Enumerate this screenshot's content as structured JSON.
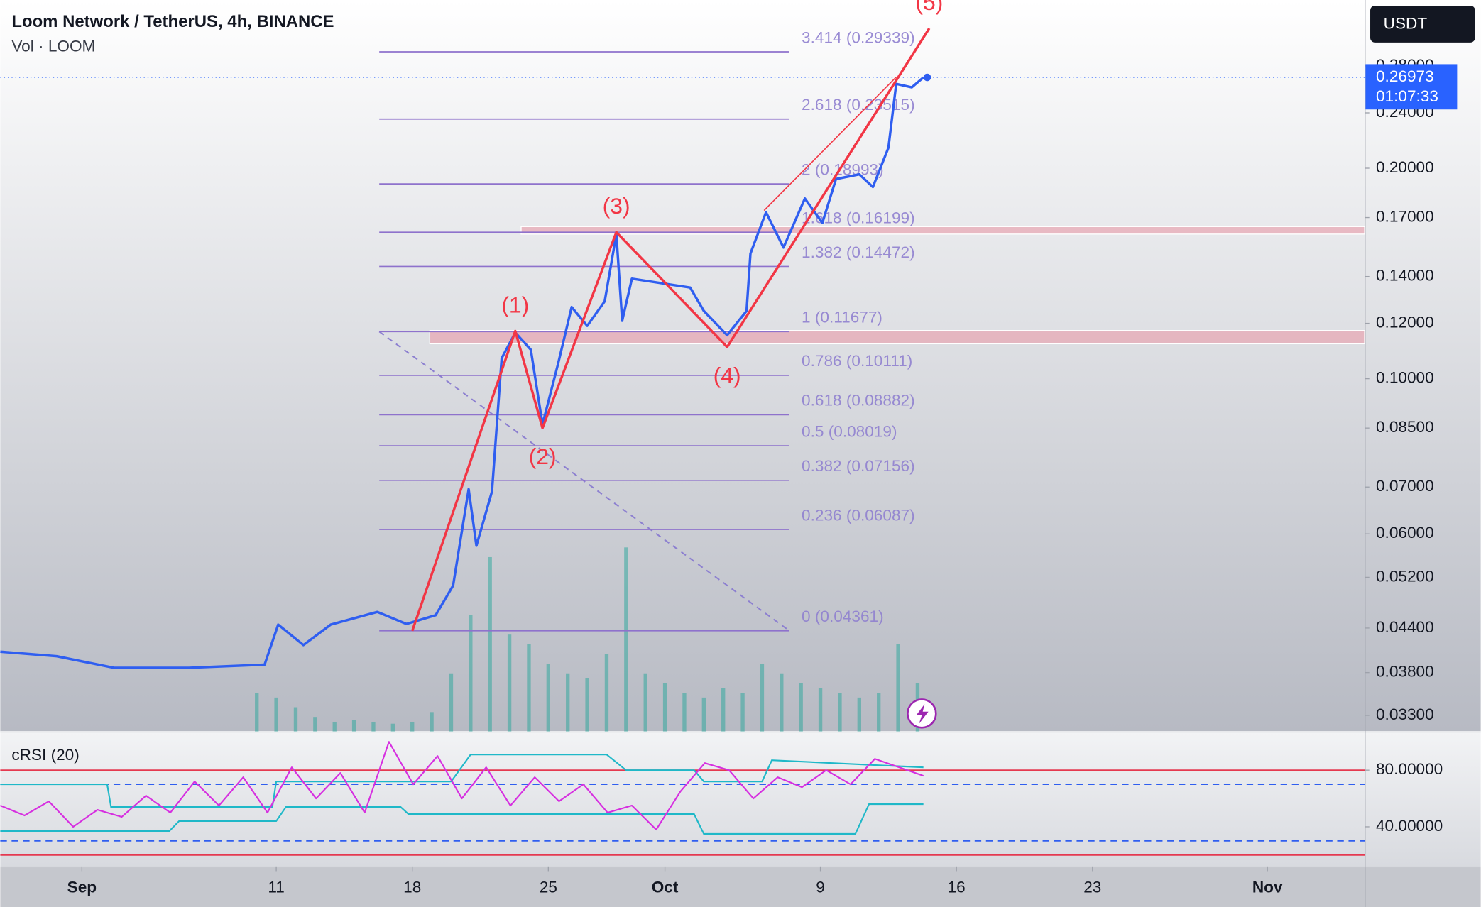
{
  "chart_data": {
    "type": "line",
    "title": "Loom Network / TetherUS, 4h, BINANCE",
    "subtitle": "Vol · LOOM",
    "currency_button": "USDT",
    "log_scale": true,
    "xlim": [
      -3.2,
      67
    ],
    "xticks": [
      {
        "value": 1,
        "label": "Sep"
      },
      11,
      18,
      25,
      {
        "value": 31,
        "label": "Oct"
      },
      {
        "value": 39,
        "label": "9"
      },
      {
        "value": 46,
        "label": "16"
      },
      {
        "value": 53,
        "label": "23"
      },
      {
        "value": 62,
        "label": "Nov"
      }
    ],
    "ylim": [
      0.0313,
      0.348
    ],
    "yticks": [
      {
        "value": 0.28,
        "label": "0.28000"
      },
      {
        "value": 0.24,
        "label": "0.24000"
      },
      {
        "value": 0.2,
        "label": "0.20000"
      },
      {
        "value": 0.17,
        "label": "0.17000"
      },
      {
        "value": 0.14,
        "label": "0.14000"
      },
      {
        "value": 0.12,
        "label": "0.12000"
      },
      {
        "value": 0.1,
        "label": "0.10000"
      },
      {
        "value": 0.085,
        "label": "0.08500"
      },
      {
        "value": 0.07,
        "label": "0.07000"
      },
      {
        "value": 0.06,
        "label": "0.06000"
      },
      {
        "value": 0.052,
        "label": "0.05200"
      },
      {
        "value": 0.044,
        "label": "0.04400"
      },
      {
        "value": 0.038,
        "label": "0.03800"
      },
      {
        "value": 0.033,
        "label": "0.03300"
      }
    ],
    "series": [
      {
        "name": "LOOM",
        "color": "#2f5ef0",
        "x": [
          -3.2,
          -0.3,
          2.65,
          6.5,
          10.4,
          11.1,
          12.4,
          13.8,
          16.2,
          17.7,
          19.2,
          20.1,
          20.9,
          21.3,
          22.1,
          22.6,
          23.3,
          24.1,
          24.7,
          25.5,
          26.2,
          27,
          27.9,
          28.5,
          28.8,
          29.3,
          30.8,
          32.3,
          33,
          34.2,
          35.2,
          35.4,
          36.2,
          37.1,
          38.2,
          39.1,
          39.8,
          41,
          41.7,
          42.5,
          42.9,
          43.7,
          44.3
        ],
        "values": [
          0.0407,
          0.0401,
          0.0386,
          0.0386,
          0.039,
          0.0445,
          0.0416,
          0.0445,
          0.0464,
          0.0446,
          0.0459,
          0.0506,
          0.0695,
          0.0577,
          0.069,
          0.107,
          0.1164,
          0.11,
          0.086,
          0.105,
          0.1266,
          0.119,
          0.129,
          0.161,
          0.121,
          0.139,
          0.137,
          0.135,
          0.125,
          0.1154,
          0.125,
          0.151,
          0.173,
          0.154,
          0.181,
          0.167,
          0.193,
          0.196,
          0.188,
          0.214,
          0.264,
          0.261,
          0.26973
        ]
      }
    ],
    "last_price": 0.26973,
    "countdown": "01:07:33",
    "volume": {
      "color": "#26a69a",
      "x": [
        10,
        11,
        12,
        13,
        14,
        15,
        16,
        17,
        18,
        19,
        20,
        21,
        22,
        23,
        24,
        25,
        26,
        27,
        28,
        29,
        30,
        31,
        32,
        33,
        34,
        35,
        36,
        37,
        38,
        39,
        40,
        41,
        42,
        43,
        44
      ],
      "values": [
        40,
        35,
        25,
        15,
        10,
        12,
        10,
        8,
        10,
        20,
        60,
        120,
        180,
        100,
        90,
        70,
        60,
        55,
        80,
        190,
        60,
        50,
        40,
        35,
        45,
        40,
        70,
        60,
        50,
        45,
        40,
        35,
        40,
        90,
        50
      ]
    },
    "waves": {
      "color": "#f23645",
      "labels": [
        null,
        "(1)",
        "(2)",
        "(3)",
        "(4)",
        "(5)"
      ],
      "x": [
        18,
        23.3,
        24.7,
        28.5,
        34.2,
        44.6
      ],
      "values": [
        0.0436,
        0.117,
        0.085,
        0.162,
        0.111,
        0.317
      ]
    },
    "channel_line": {
      "x": [
        36.1,
        42.9
      ],
      "values": [
        0.174,
        0.27
      ]
    },
    "fib_anchor": {
      "x": [
        16.3,
        37.4
      ],
      "values": [
        0.11677,
        0.04361
      ]
    },
    "fib_levels": [
      {
        "label": "3.414 (0.29339)",
        "value": 0.29339
      },
      {
        "label": "2.618 (0.23515)",
        "value": 0.23515
      },
      {
        "label": "2 (0.18993)",
        "value": 0.18993
      },
      {
        "label": "1.618 (0.16199)",
        "value": 0.16199
      },
      {
        "label": "1.382 (0.14472)",
        "value": 0.14472
      },
      {
        "label": "1 (0.11677)",
        "value": 0.11677
      },
      {
        "label": "0.786 (0.10111)",
        "value": 0.10111
      },
      {
        "label": "0.618 (0.08882)",
        "value": 0.08882
      },
      {
        "label": "0.5 (0.08019)",
        "value": 0.08019
      },
      {
        "label": "0.382 (0.07156)",
        "value": 0.07156
      },
      {
        "label": "0.236 (0.06087)",
        "value": 0.06087
      },
      {
        "label": "0 (0.04361)",
        "value": 0.04361
      }
    ],
    "zones": [
      {
        "start": 23.6,
        "from": 0.161,
        "to": 0.165
      },
      {
        "start": 18.9,
        "from": 0.1122,
        "to": 0.1172
      }
    ],
    "rsi": {
      "title": "cRSI (20)",
      "ylim": [
        12,
        106
      ],
      "yticks": [
        {
          "value": 80,
          "label": "80.00000"
        },
        {
          "value": 40,
          "label": "40.00000"
        }
      ],
      "red_levels": [
        80,
        20
      ],
      "blue_levels": [
        70,
        30
      ],
      "line": {
        "color": "#d62fe0",
        "x": [
          -3.2,
          -1.95,
          -0.7,
          0.55,
          1.8,
          3.05,
          4.3,
          5.55,
          6.8,
          8.05,
          9.3,
          10.55,
          11.8,
          13.05,
          14.3,
          15.55,
          16.8,
          18.05,
          19.3,
          20.55,
          21.8,
          23.05,
          24.3,
          25.55,
          26.8,
          28.05,
          29.3,
          30.55,
          31.8,
          33.05,
          34.3,
          35.55,
          36.8,
          38.05,
          39.3,
          40.55,
          41.8,
          43.05,
          44.3
        ],
        "values": [
          55,
          48,
          58,
          40,
          52,
          47,
          62,
          50,
          72,
          55,
          75,
          50,
          82,
          60,
          78,
          50,
          100,
          70,
          90,
          60,
          82,
          55,
          75,
          58,
          70,
          50,
          55,
          38,
          65,
          85,
          80,
          60,
          75,
          68,
          80,
          70,
          88,
          82,
          76
        ]
      },
      "upper_band": {
        "color": "#1fb8c8",
        "x": [
          -3.2,
          2.3,
          2.5,
          10.8,
          11,
          20,
          21,
          28,
          29,
          32.5,
          33,
          36,
          36.5,
          44.3
        ],
        "values": [
          70,
          70,
          54,
          54,
          72,
          72,
          91,
          91,
          80,
          80,
          72,
          72,
          87,
          82
        ]
      },
      "lower_band": {
        "color": "#1fb8c8",
        "x": [
          -3.2,
          5.5,
          6,
          11,
          11.5,
          17.4,
          17.8,
          32.5,
          33,
          40.8,
          41.5,
          44.3
        ],
        "values": [
          37,
          37,
          44,
          44,
          54,
          54,
          49,
          49,
          35,
          35,
          56,
          56
        ]
      }
    }
  }
}
